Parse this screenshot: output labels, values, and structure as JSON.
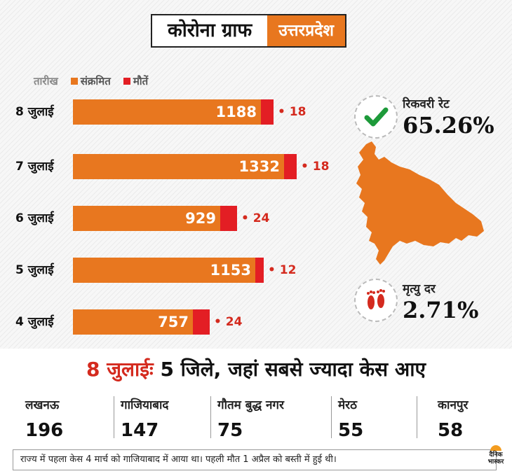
{
  "header": {
    "title": "कोरोना ग्राफ",
    "region": "उत्तरप्रदेश"
  },
  "legend": {
    "date_label": "तारीख",
    "infected_label": "संक्रमित",
    "deaths_label": "मौतें"
  },
  "colors": {
    "infected": "#e8771f",
    "deaths": "#e31e24"
  },
  "chart_data": {
    "type": "bar",
    "orientation": "horizontal",
    "stacked": true,
    "categories": [
      "8 जुलाई",
      "7 जुलाई",
      "6 जुलाई",
      "5 जुलाई",
      "4 जुलाई"
    ],
    "series": [
      {
        "name": "संक्रमित",
        "values": [
          1188,
          1332,
          929,
          1153,
          757
        ]
      },
      {
        "name": "मौतें",
        "values": [
          18,
          18,
          24,
          12,
          24
        ]
      }
    ],
    "y_label": "तारीख",
    "grid": false,
    "legend_position": "top"
  },
  "stats": {
    "recovery": {
      "label": "रिकवरी रेट",
      "value": "65.26%",
      "icon": "check-icon"
    },
    "death": {
      "label": "मृत्यु दर",
      "value": "2.71%",
      "icon": "footprints-icon"
    }
  },
  "headline": {
    "date": "8 जुलाईः",
    "text": "5 जिले, जहां सबसे ज्यादा केस आए"
  },
  "districts": [
    {
      "name": "लखनऊ",
      "value": "196"
    },
    {
      "name": "गाजियाबाद",
      "value": "147"
    },
    {
      "name": "गौतम बुद्ध नगर",
      "value": "75"
    },
    {
      "name": "मेरठ",
      "value": "55"
    },
    {
      "name": "कानपुर",
      "value": "58"
    }
  ],
  "footer": {
    "note": "राज्य में पहला केस 4 मार्च को गाजियाबाद में आया था। पहली मौत 1 अप्रैल को बस्ती में हुई थी।"
  },
  "brand": {
    "logo_text": "दैनिक भास्कर"
  }
}
